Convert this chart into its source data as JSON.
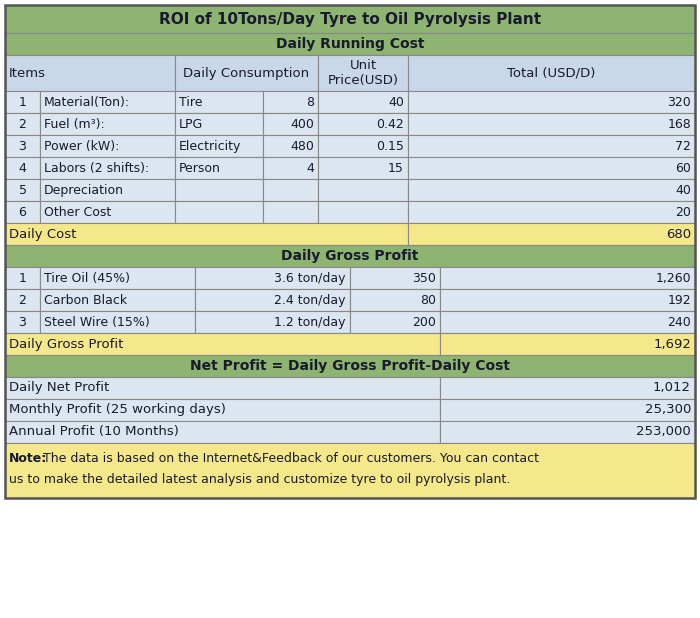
{
  "title": "ROI of 10Tons/Day Tyre to Oil Pyrolysis Plant",
  "title_bg": "#8db471",
  "section_bg": "#8db471",
  "header_bg": "#c8d8e8",
  "row_bg": "#dce6f1",
  "yellow_bg": "#f5e88a",
  "note_bg": "#f5e88a",
  "border_color": "#888888",
  "text_color": "#1a1a2e",
  "running_cost_rows": [
    [
      "1",
      "Material(Ton):",
      "Tire",
      "8",
      "40",
      "320"
    ],
    [
      "2",
      "Fuel (m³):",
      "LPG",
      "400",
      "0.42",
      "168"
    ],
    [
      "3",
      "Power (kW):",
      "Electricity",
      "480",
      "0.15",
      "72"
    ],
    [
      "4",
      "Labors (2 shifts):",
      "Person",
      "4",
      "15",
      "60"
    ],
    [
      "5",
      "Depreciation",
      "",
      "",
      "",
      "40"
    ],
    [
      "6",
      "Other Cost",
      "",
      "",
      "",
      "20"
    ]
  ],
  "daily_cost_row": [
    "Daily Cost",
    "680"
  ],
  "gross_profit_header": "Daily Gross Profit",
  "gross_profit_rows": [
    [
      "1",
      "Tire Oil (45%)",
      "3.6 ton/day",
      "350",
      "1,260"
    ],
    [
      "2",
      "Carbon Black",
      "2.4 ton/day",
      "80",
      "192"
    ],
    [
      "3",
      "Steel Wire (15%)",
      "1.2 ton/day",
      "200",
      "240"
    ]
  ],
  "daily_gross_profit_row": [
    "Daily Gross Profit",
    "1,692"
  ],
  "net_profit_header": "Net Profit = Daily Gross Profit-Daily Cost",
  "net_profit_rows": [
    [
      "Daily Net Profit",
      "1,012"
    ],
    [
      "Monthly Profit (25 working days)",
      "25,300"
    ],
    [
      "Annual Profit (10 Months)",
      "253,000"
    ]
  ],
  "note_bold": "Note:",
  "note_rest": " The data is based on the Internet&Feedback of our customers. You can contact",
  "note_line2": "us to make the detailed latest analysis and customize tyre to oil pyrolysis plant."
}
